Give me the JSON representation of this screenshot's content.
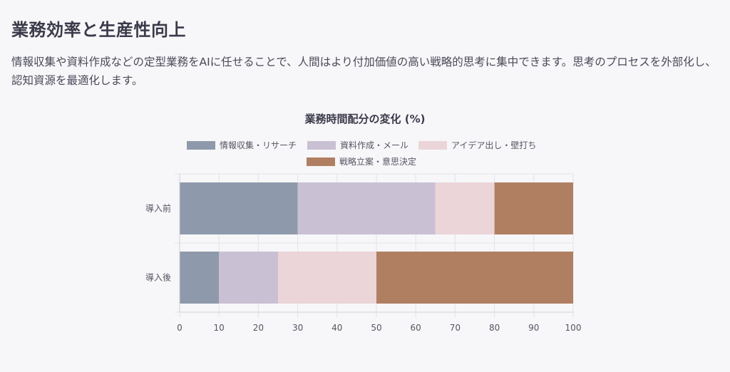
{
  "page": {
    "title": "業務効率と生産性向上",
    "description": "情報収集や資料作成などの定型業務をAIに任せることで、人間はより付加価値の高い戦略的思考に集中できます。思考のプロセスを外部化し、認知資源を最適化します。"
  },
  "chart_data": {
    "type": "bar",
    "orientation": "horizontal",
    "stacked": true,
    "title": "業務時間配分の変化 (%)",
    "categories": [
      "導入前",
      "導入後"
    ],
    "series": [
      {
        "name": "情報収集・リサーチ",
        "values": [
          30,
          10
        ],
        "color": "#8e9aab"
      },
      {
        "name": "資料作成・メール",
        "values": [
          35,
          15
        ],
        "color": "#c9c1d3"
      },
      {
        "name": "アイデア出し・壁打ち",
        "values": [
          15,
          25
        ],
        "color": "#ebd5d8"
      },
      {
        "name": "戦略立案・意思決定",
        "values": [
          20,
          50
        ],
        "color": "#b07f62"
      }
    ],
    "xlim": [
      0,
      100
    ],
    "x_ticks": [
      0,
      10,
      20,
      30,
      40,
      50,
      60,
      70,
      80,
      90,
      100
    ],
    "grid": true,
    "legend_position": "top"
  }
}
